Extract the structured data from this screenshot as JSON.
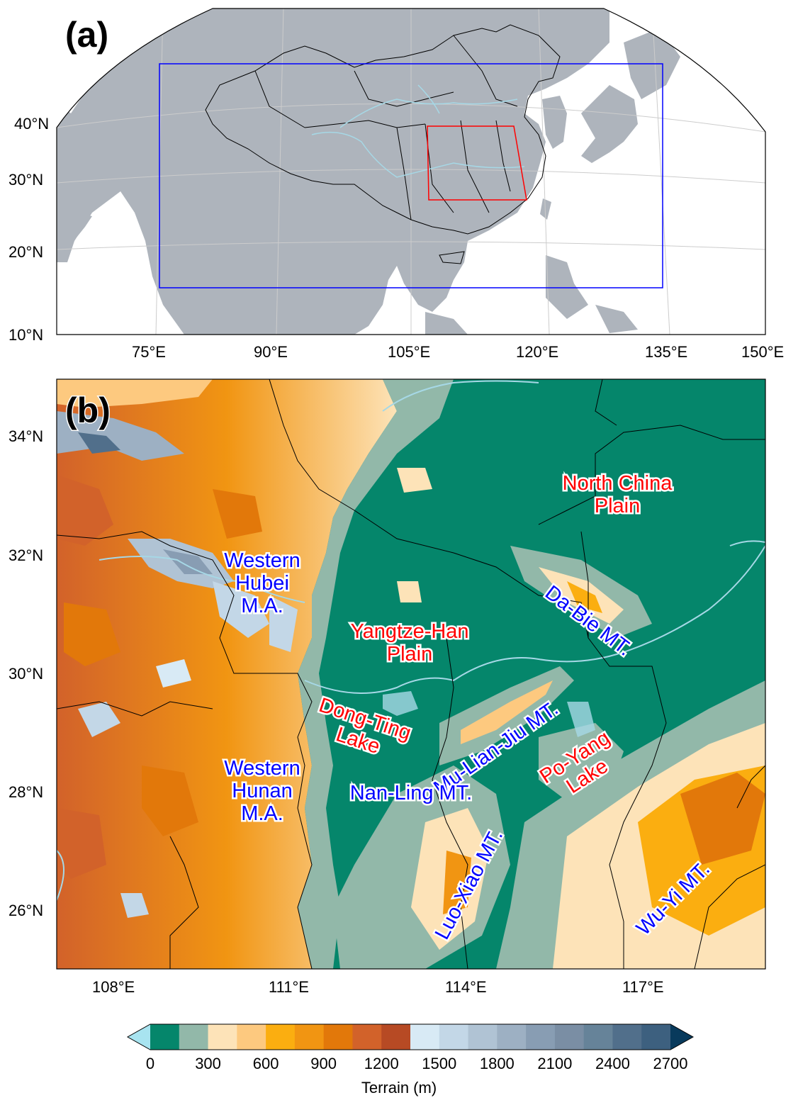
{
  "panel_a": {
    "label": "(a)",
    "lat_ticks": [
      "40°N",
      "30°N",
      "20°N",
      "10°N"
    ],
    "lon_ticks": [
      "75°E",
      "90°E",
      "105°E",
      "120°E",
      "135°E",
      "150°E"
    ],
    "colors": {
      "land": "#aeb4bc",
      "ocean": "#ffffff",
      "outer_box": "#0000ff",
      "inner_box": "#ff0000",
      "rivers": "#a6d8e6"
    }
  },
  "panel_b": {
    "label": "(b)",
    "lat_ticks": [
      "34°N",
      "32°N",
      "30°N",
      "28°N",
      "26°N"
    ],
    "lon_ticks": [
      "108°E",
      "111°E",
      "114°E",
      "117°E"
    ],
    "labels_red": [
      "North China Plain",
      "Yangtze-Han Plain",
      "Dong-Ting Lake",
      "Po-Yang Lake"
    ],
    "labels_blue": [
      "Western Hubei M.A.",
      "Da-Bie MT.",
      "Mu-Lian-Jiu MT.",
      "Western Hunan M.A.",
      "Luo-Xiao MT.",
      "Wu-Yi MT.",
      "Nan-Ling MT."
    ],
    "text": {
      "north_china_1": "North China",
      "north_china_2": "Plain",
      "yangtze_1": "Yangtze-Han",
      "yangtze_2": "Plain",
      "dongting_1": "Dong-Ting",
      "dongting_2": "Lake",
      "poyang_1": "Po-Yang",
      "poyang_2": "Lake",
      "whubei_1": "Western",
      "whubei_2": "Hubei",
      "whubei_3": "M.A.",
      "whunan_1": "Western",
      "whunan_2": "Hunan",
      "whunan_3": "M.A.",
      "dabie": "Da-Bie MT.",
      "mulianjiu": "Mu-Lian-Jiu MT.",
      "luoxiao": "Luo-Xiao MT.",
      "wuyi": "Wu-Yi MT.",
      "nanling": "Nan-Ling MT."
    }
  },
  "colorbar": {
    "title": "Terrain (m)",
    "tick_labels": [
      "0",
      "300",
      "600",
      "900",
      "1200",
      "1500",
      "1800",
      "2100",
      "2400",
      "2700"
    ],
    "under_color": "#a8e4f0",
    "over_color": "#083a5c",
    "bins": [
      "#05866b",
      "#92b8a9",
      "#fde3b8",
      "#fdc97f",
      "#fbae10",
      "#f19512",
      "#e2780a",
      "#d2622a",
      "#b74a24",
      "#d8eaf5",
      "#c3d7e7",
      "#b0c3d4",
      "#9db0c3",
      "#889db3",
      "#7a8ea4",
      "#668399",
      "#516f8b",
      "#3d607f"
    ]
  }
}
